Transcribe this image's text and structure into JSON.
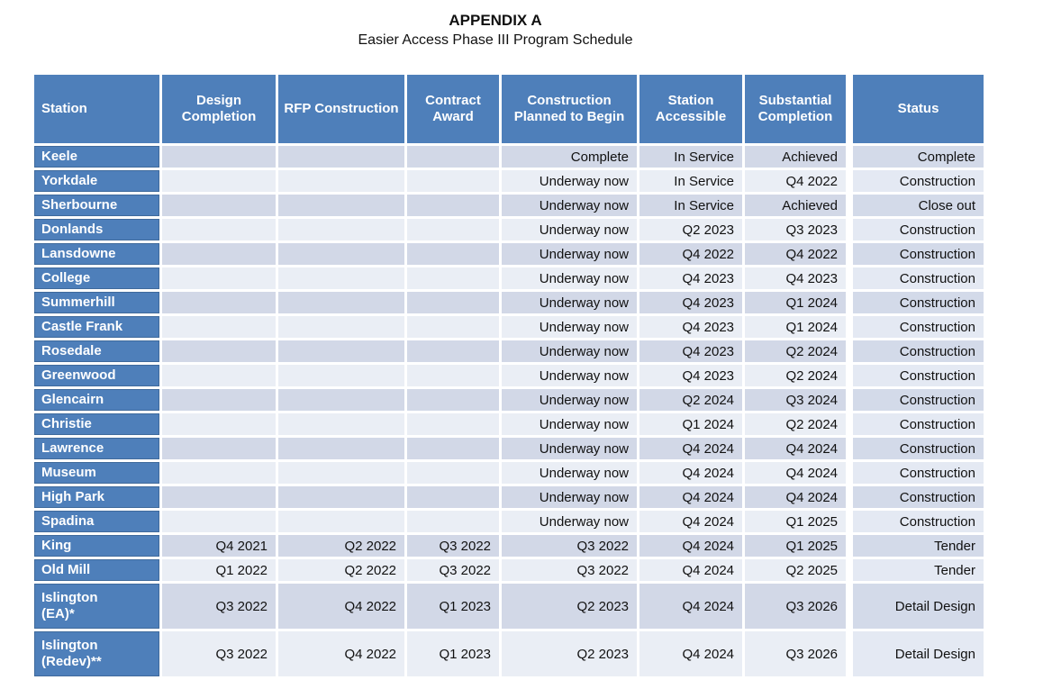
{
  "page": {
    "title": "APPENDIX A",
    "subtitle": "Easier Access Phase III Program Schedule"
  },
  "colors": {
    "header_blue": "#4e7fba",
    "station_border": "#3f6a9c",
    "row_dark": "#d2d8e7",
    "row_light": "#eaeef5",
    "status_dark": "#d3dae9",
    "status_light": "#e4e9f3",
    "text": "#111111"
  },
  "table": {
    "headers": [
      "Station",
      "Design Completion",
      "RFP Construction",
      "Contract Award",
      "Construction Planned to Begin",
      "Station Accessible",
      "Substantial Completion",
      "Status"
    ],
    "rows": [
      {
        "station": "Keele",
        "design": "",
        "rfp": "",
        "contract": "",
        "planned": "Complete",
        "accessible": "In Service",
        "substantial": "Achieved",
        "status": "Complete"
      },
      {
        "station": "Yorkdale",
        "design": "",
        "rfp": "",
        "contract": "",
        "planned": "Underway now",
        "accessible": "In Service",
        "substantial": "Q4 2022",
        "status": "Construction"
      },
      {
        "station": "Sherbourne",
        "design": "",
        "rfp": "",
        "contract": "",
        "planned": "Underway now",
        "accessible": "In Service",
        "substantial": "Achieved",
        "status": "Close out"
      },
      {
        "station": "Donlands",
        "design": "",
        "rfp": "",
        "contract": "",
        "planned": "Underway now",
        "accessible": "Q2 2023",
        "substantial": "Q3 2023",
        "status": "Construction"
      },
      {
        "station": "Lansdowne",
        "design": "",
        "rfp": "",
        "contract": "",
        "planned": "Underway now",
        "accessible": "Q4 2022",
        "substantial": "Q4 2022",
        "status": "Construction"
      },
      {
        "station": "College",
        "design": "",
        "rfp": "",
        "contract": "",
        "planned": "Underway now",
        "accessible": "Q4 2023",
        "substantial": "Q4 2023",
        "status": "Construction"
      },
      {
        "station": "Summerhill",
        "design": "",
        "rfp": "",
        "contract": "",
        "planned": "Underway now",
        "accessible": "Q4 2023",
        "substantial": "Q1 2024",
        "status": "Construction"
      },
      {
        "station": "Castle Frank",
        "design": "",
        "rfp": "",
        "contract": "",
        "planned": "Underway now",
        "accessible": "Q4 2023",
        "substantial": "Q1 2024",
        "status": "Construction"
      },
      {
        "station": "Rosedale",
        "design": "",
        "rfp": "",
        "contract": "",
        "planned": "Underway now",
        "accessible": "Q4 2023",
        "substantial": "Q2 2024",
        "status": "Construction"
      },
      {
        "station": "Greenwood",
        "design": "",
        "rfp": "",
        "contract": "",
        "planned": "Underway now",
        "accessible": "Q4 2023",
        "substantial": "Q2 2024",
        "status": "Construction"
      },
      {
        "station": "Glencairn",
        "design": "",
        "rfp": "",
        "contract": "",
        "planned": "Underway now",
        "accessible": "Q2 2024",
        "substantial": "Q3 2024",
        "status": "Construction"
      },
      {
        "station": "Christie",
        "design": "",
        "rfp": "",
        "contract": "",
        "planned": "Underway now",
        "accessible": "Q1 2024",
        "substantial": "Q2 2024",
        "status": "Construction"
      },
      {
        "station": "Lawrence",
        "design": "",
        "rfp": "",
        "contract": "",
        "planned": "Underway now",
        "accessible": "Q4 2024",
        "substantial": "Q4 2024",
        "status": "Construction"
      },
      {
        "station": "Museum",
        "design": "",
        "rfp": "",
        "contract": "",
        "planned": "Underway now",
        "accessible": "Q4 2024",
        "substantial": "Q4 2024",
        "status": "Construction"
      },
      {
        "station": "High Park",
        "design": "",
        "rfp": "",
        "contract": "",
        "planned": "Underway now",
        "accessible": "Q4 2024",
        "substantial": "Q4 2024",
        "status": "Construction"
      },
      {
        "station": "Spadina",
        "design": "",
        "rfp": "",
        "contract": "",
        "planned": "Underway now",
        "accessible": "Q4 2024",
        "substantial": "Q1 2025",
        "status": "Construction"
      },
      {
        "station": "King",
        "design": "Q4 2021",
        "rfp": "Q2 2022",
        "contract": "Q3 2022",
        "planned": "Q3 2022",
        "accessible": "Q4 2024",
        "substantial": "Q1 2025",
        "status": "Tender"
      },
      {
        "station": "Old Mill",
        "design": "Q1 2022",
        "rfp": "Q2 2022",
        "contract": "Q3 2022",
        "planned": "Q3 2022",
        "accessible": "Q4 2024",
        "substantial": "Q2 2025",
        "status": "Tender"
      },
      {
        "station": "Islington\n(EA)*",
        "design": "Q3 2022",
        "rfp": "Q4 2022",
        "contract": "Q1 2023",
        "planned": "Q2 2023",
        "accessible": "Q4 2024",
        "substantial": "Q3 2026",
        "status": "Detail Design"
      },
      {
        "station": "Islington\n(Redev)**",
        "design": "Q3 2022",
        "rfp": "Q4 2022",
        "contract": "Q1 2023",
        "planned": "Q2 2023",
        "accessible": "Q4 2024",
        "substantial": "Q3 2026",
        "status": "Detail Design"
      }
    ],
    "centered_planned_values": [
      "Complete",
      "Underway now"
    ]
  }
}
